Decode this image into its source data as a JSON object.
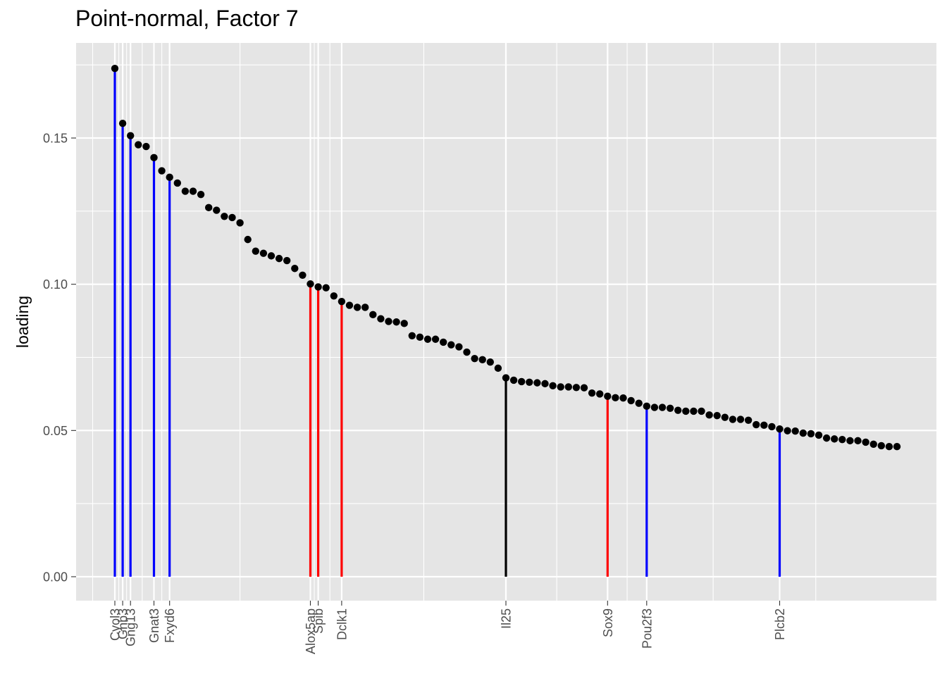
{
  "chart_data": {
    "type": "scatter",
    "title": "Point-normal, Factor 7",
    "xlabel": "",
    "ylabel": "loading",
    "ylim": [
      -0.0085,
      0.1775
    ],
    "yticks": [
      0.0,
      0.05,
      0.1,
      0.15
    ],
    "ytick_labels": [
      "0.00",
      "0.05",
      "0.10",
      "0.15"
    ],
    "grid": true,
    "legend": "none",
    "colors": {
      "panel": "#e5e5e5",
      "grid": "#ffffff",
      "point": "#000000",
      "blue": "#0000ff",
      "red": "#ff0000",
      "black": "#000000"
    },
    "points": [
      0.1738,
      0.155,
      0.1508,
      0.1477,
      0.1471,
      0.1433,
      0.1388,
      0.1366,
      0.1346,
      0.1318,
      0.1318,
      0.1307,
      0.1262,
      0.1253,
      0.1232,
      0.1228,
      0.121,
      0.1153,
      0.1113,
      0.1106,
      0.1097,
      0.1088,
      0.1081,
      0.1054,
      0.1031,
      0.1001,
      0.0991,
      0.0988,
      0.096,
      0.0941,
      0.0928,
      0.0921,
      0.0921,
      0.0896,
      0.0882,
      0.0873,
      0.0871,
      0.0866,
      0.0824,
      0.0819,
      0.0812,
      0.0812,
      0.0802,
      0.0793,
      0.0786,
      0.0768,
      0.0746,
      0.0742,
      0.0734,
      0.0713,
      0.068,
      0.0672,
      0.0667,
      0.0665,
      0.0663,
      0.066,
      0.0653,
      0.0649,
      0.0649,
      0.0647,
      0.0646,
      0.0628,
      0.0625,
      0.0617,
      0.0612,
      0.0611,
      0.0602,
      0.0593,
      0.0583,
      0.0579,
      0.0579,
      0.0576,
      0.0569,
      0.0566,
      0.0566,
      0.0566,
      0.0553,
      0.0551,
      0.0545,
      0.0538,
      0.0538,
      0.0535,
      0.052,
      0.0518,
      0.0513,
      0.0505,
      0.0499,
      0.0498,
      0.0491,
      0.0489,
      0.0484,
      0.0474,
      0.0471,
      0.0469,
      0.0465,
      0.0465,
      0.046,
      0.0453,
      0.0448,
      0.0445,
      0.0445
    ],
    "highlighted_genes": [
      {
        "gene": "Cyol3",
        "rank": 1,
        "loading": 0.1738,
        "color": "blue"
      },
      {
        "gene": "Gnb3",
        "rank": 2,
        "loading": 0.155,
        "color": "blue"
      },
      {
        "gene": "Gng13",
        "rank": 3,
        "loading": 0.1508,
        "color": "blue"
      },
      {
        "gene": "Gnat3",
        "rank": 6,
        "loading": 0.1433,
        "color": "blue"
      },
      {
        "gene": "Fxyd6",
        "rank": 8,
        "loading": 0.1366,
        "color": "blue"
      },
      {
        "gene": "Alox5ap",
        "rank": 26,
        "loading": 0.1001,
        "color": "red"
      },
      {
        "gene": "Spib",
        "rank": 27,
        "loading": 0.0991,
        "color": "red"
      },
      {
        "gene": "Dclk1",
        "rank": 30,
        "loading": 0.0941,
        "color": "red"
      },
      {
        "gene": "Il25",
        "rank": 51,
        "loading": 0.068,
        "color": "black"
      },
      {
        "gene": "Sox9",
        "rank": 64,
        "loading": 0.0617,
        "color": "red"
      },
      {
        "gene": "Pou2f3",
        "rank": 69,
        "loading": 0.0583,
        "color": "blue"
      },
      {
        "gene": "Plcb2",
        "rank": 86,
        "loading": 0.0505,
        "color": "blue"
      }
    ]
  }
}
